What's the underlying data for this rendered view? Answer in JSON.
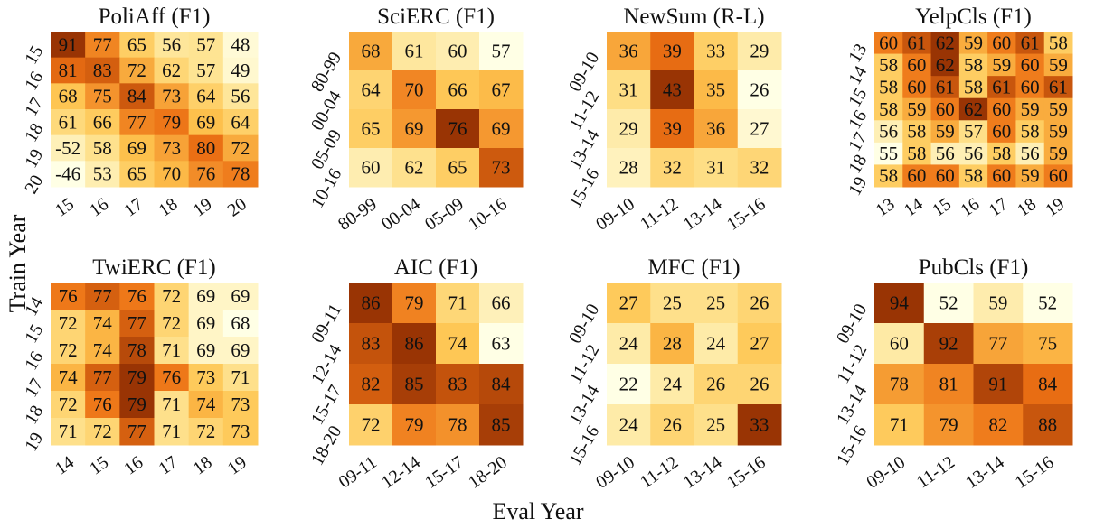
{
  "figure": {
    "ylabel": "Train Year",
    "xlabel": "Eval Year"
  },
  "chart_data": [
    {
      "type": "heatmap",
      "title": "PoliAff (F1)",
      "x_categories": [
        "15",
        "16",
        "17",
        "18",
        "19",
        "20"
      ],
      "y_categories": [
        "15",
        "16",
        "17",
        "18",
        "19",
        "20"
      ],
      "values": [
        [
          91,
          77,
          65,
          56,
          57,
          48
        ],
        [
          81,
          83,
          72,
          62,
          57,
          49
        ],
        [
          68,
          75,
          84,
          73,
          64,
          56
        ],
        [
          61,
          66,
          77,
          79,
          69,
          64
        ],
        [
          -52,
          58,
          69,
          73,
          80,
          72
        ],
        [
          -46,
          53,
          65,
          70,
          76,
          78
        ]
      ]
    },
    {
      "type": "heatmap",
      "title": "SciERC (F1)",
      "x_categories": [
        "80-99",
        "00-04",
        "05-09",
        "10-16"
      ],
      "y_categories": [
        "80-99",
        "00-04",
        "05-09",
        "10-16"
      ],
      "values": [
        [
          68,
          61,
          60,
          57
        ],
        [
          64,
          70,
          66,
          67
        ],
        [
          65,
          69,
          76,
          69
        ],
        [
          60,
          62,
          65,
          73
        ]
      ]
    },
    {
      "type": "heatmap",
      "title": "NewSum (R-L)",
      "x_categories": [
        "09-10",
        "11-12",
        "13-14",
        "15-16"
      ],
      "y_categories": [
        "09-10",
        "11-12",
        "13-14",
        "15-16"
      ],
      "values": [
        [
          36,
          39,
          33,
          29
        ],
        [
          31,
          43,
          35,
          26
        ],
        [
          29,
          39,
          36,
          27
        ],
        [
          28,
          32,
          31,
          32
        ]
      ]
    },
    {
      "type": "heatmap",
      "title": "YelpCls (F1)",
      "x_categories": [
        "13",
        "14",
        "15",
        "16",
        "17",
        "18",
        "19"
      ],
      "y_categories": [
        "13",
        "14",
        "15",
        "16",
        "17",
        "18",
        "19"
      ],
      "values": [
        [
          60,
          61,
          62,
          59,
          60,
          61,
          58
        ],
        [
          58,
          60,
          62,
          58,
          59,
          60,
          59
        ],
        [
          58,
          60,
          61,
          58,
          61,
          60,
          61
        ],
        [
          58,
          59,
          60,
          62,
          60,
          59,
          59
        ],
        [
          56,
          58,
          59,
          57,
          60,
          58,
          59
        ],
        [
          55,
          58,
          56,
          56,
          58,
          56,
          59
        ],
        [
          58,
          60,
          60,
          58,
          60,
          59,
          60
        ]
      ]
    },
    {
      "type": "heatmap",
      "title": "TwiERC (F1)",
      "x_categories": [
        "14",
        "15",
        "16",
        "17",
        "18",
        "19"
      ],
      "y_categories": [
        "14",
        "15",
        "16",
        "17",
        "18",
        "19"
      ],
      "values": [
        [
          76,
          77,
          76,
          72,
          69,
          69
        ],
        [
          72,
          74,
          77,
          72,
          69,
          68
        ],
        [
          72,
          74,
          78,
          71,
          69,
          69
        ],
        [
          74,
          77,
          79,
          76,
          73,
          71
        ],
        [
          72,
          76,
          79,
          71,
          74,
          73
        ],
        [
          71,
          72,
          77,
          71,
          72,
          73
        ]
      ]
    },
    {
      "type": "heatmap",
      "title": "AIC (F1)",
      "x_categories": [
        "09-11",
        "12-14",
        "15-17",
        "18-20"
      ],
      "y_categories": [
        "09-11",
        "12-14",
        "15-17",
        "18-20"
      ],
      "values": [
        [
          86,
          79,
          71,
          66
        ],
        [
          83,
          86,
          74,
          63
        ],
        [
          82,
          85,
          83,
          84
        ],
        [
          72,
          79,
          78,
          85
        ]
      ]
    },
    {
      "type": "heatmap",
      "title": "MFC (F1)",
      "x_categories": [
        "09-10",
        "11-12",
        "13-14",
        "15-16"
      ],
      "y_categories": [
        "09-10",
        "11-12",
        "13-14",
        "15-16"
      ],
      "values": [
        [
          27,
          25,
          25,
          26
        ],
        [
          24,
          28,
          24,
          27
        ],
        [
          22,
          24,
          26,
          26
        ],
        [
          24,
          26,
          25,
          33
        ]
      ]
    },
    {
      "type": "heatmap",
      "title": "PubCls (F1)",
      "x_categories": [
        "09-10",
        "11-12",
        "13-14",
        "15-16"
      ],
      "y_categories": [
        "09-10",
        "11-12",
        "13-14",
        "15-16"
      ],
      "values": [
        [
          94,
          52,
          59,
          52
        ],
        [
          60,
          92,
          77,
          75
        ],
        [
          78,
          81,
          91,
          84
        ],
        [
          71,
          79,
          82,
          88
        ]
      ]
    }
  ]
}
